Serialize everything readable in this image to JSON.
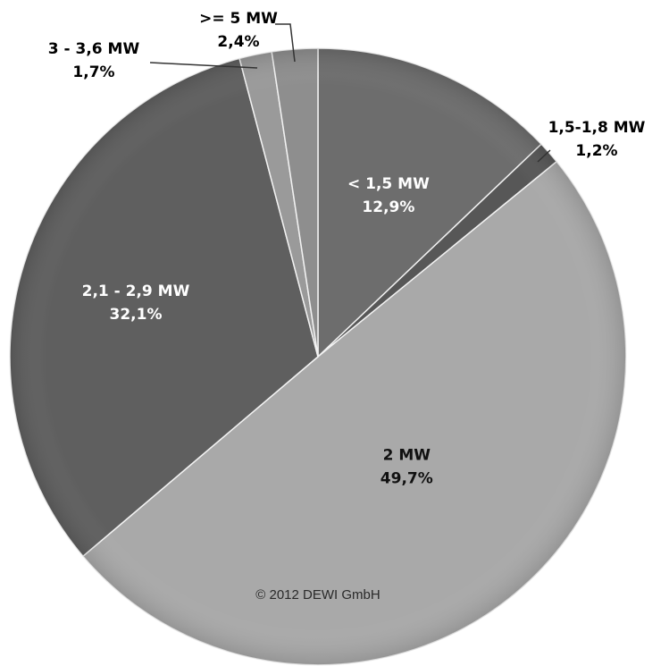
{
  "chart_data": {
    "type": "pie",
    "start_angle_deg": 0,
    "direction": "clockwise",
    "slices": [
      {
        "label": "< 1,5 MW",
        "value": 12.9,
        "value_label": "12,9%",
        "color": "#6d6d6d",
        "label_color": "#ffffff"
      },
      {
        "label": "1,5-1,8 MW",
        "value": 1.2,
        "value_label": "1,2%",
        "color": "#575757",
        "label_color": "#000000"
      },
      {
        "label": "2 MW",
        "value": 49.7,
        "value_label": "49,7%",
        "color": "#a9a9a9",
        "label_color": "#111111"
      },
      {
        "label": "2,1 - 2,9 MW",
        "value": 32.1,
        "value_label": "32,1%",
        "color": "#5f5f5f",
        "label_color": "#ffffff"
      },
      {
        "label": "3 - 3,6 MW",
        "value": 1.7,
        "value_label": "1,7%",
        "color": "#9a9a9a",
        "label_color": "#000000"
      },
      {
        "label": ">= 5 MW",
        "value": 2.4,
        "value_label": "2,4%",
        "color": "#8e8e8e",
        "label_color": "#000000"
      }
    ],
    "annotation": "© 2012 DEWI GmbH"
  }
}
